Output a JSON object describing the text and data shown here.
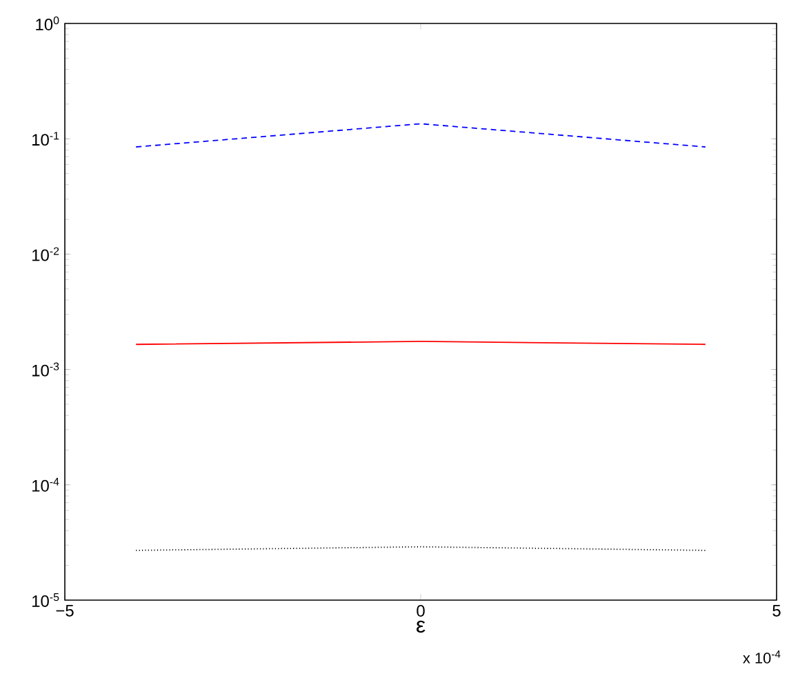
{
  "chart_data": {
    "type": "line",
    "xlabel": "ε",
    "log": "y",
    "xlim": [
      -5,
      5
    ],
    "xticks": [
      {
        "value": -5,
        "label": "−5"
      },
      0,
      5
    ],
    "ylim": [
      1e-05,
      1
    ],
    "yticks": [
      {
        "value": 1e-05,
        "label": "10$^{-5}$"
      },
      {
        "value": 0.0001,
        "label": "10$^{-4}$"
      },
      {
        "value": 0.001,
        "label": "10$^{-3}$"
      },
      {
        "value": 0.01,
        "label": "10$^{-2}$"
      },
      {
        "value": 0.1,
        "label": "10$^{-1}$"
      },
      {
        "value": 1,
        "label": "10$^{0}$"
      }
    ],
    "annotations": [
      "x 10$^{-4}$"
    ],
    "series": [
      {
        "color": "#0000ff",
        "line_style": "dashed",
        "x": [
          -4,
          0,
          4
        ],
        "values": [
          0.085,
          0.135,
          0.085
        ]
      },
      {
        "color": "#ff0000",
        "line_style": "solid",
        "x": [
          -4,
          0,
          4
        ],
        "values": [
          0.00165,
          0.00175,
          0.00165
        ]
      },
      {
        "color": "#000000",
        "line_style": "dotted",
        "x": [
          -4,
          0,
          4
        ],
        "values": [
          2.7e-05,
          2.9e-05,
          2.7e-05
        ]
      }
    ]
  }
}
